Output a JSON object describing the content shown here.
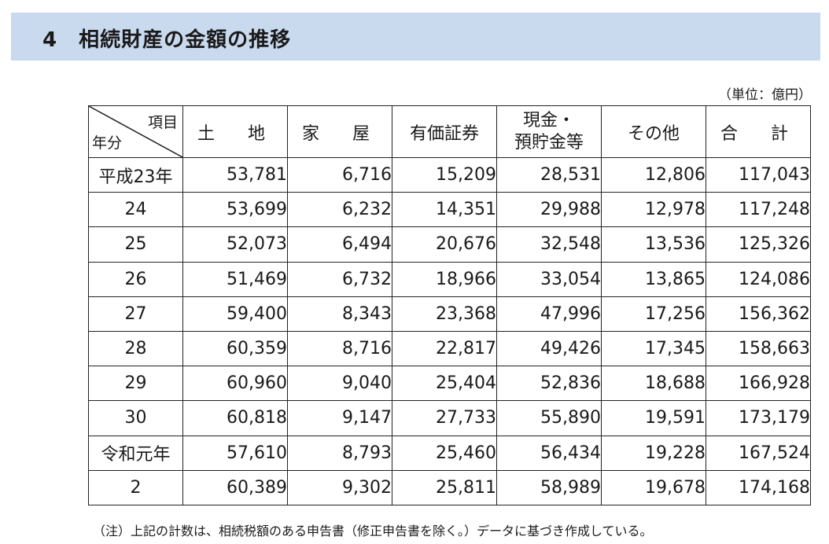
{
  "title": "4　相続財産の金額の推移",
  "unit": "（単位：億円）",
  "table": {
    "corner_top": "項目",
    "corner_bottom": "年分",
    "headers": [
      "土　地",
      "家　屋",
      "有価証券",
      "現金・",
      "その他",
      "合　計"
    ],
    "header_cash_line2": "預貯金等",
    "rows": [
      {
        "year": "平成23年",
        "values": [
          "53,781",
          "6,716",
          "15,209",
          "28,531",
          "12,806",
          "117,043"
        ]
      },
      {
        "year": "24",
        "values": [
          "53,699",
          "6,232",
          "14,351",
          "29,988",
          "12,978",
          "117,248"
        ]
      },
      {
        "year": "25",
        "values": [
          "52,073",
          "6,494",
          "20,676",
          "32,548",
          "13,536",
          "125,326"
        ]
      },
      {
        "year": "26",
        "values": [
          "51,469",
          "6,732",
          "18,966",
          "33,054",
          "13,865",
          "124,086"
        ]
      },
      {
        "year": "27",
        "values": [
          "59,400",
          "8,343",
          "23,368",
          "47,996",
          "17,256",
          "156,362"
        ]
      },
      {
        "year": "28",
        "values": [
          "60,359",
          "8,716",
          "22,817",
          "49,426",
          "17,345",
          "158,663"
        ]
      },
      {
        "year": "29",
        "values": [
          "60,960",
          "9,040",
          "25,404",
          "52,836",
          "18,688",
          "166,928"
        ]
      },
      {
        "year": "30",
        "values": [
          "60,818",
          "9,147",
          "27,733",
          "55,890",
          "19,591",
          "173,179"
        ]
      },
      {
        "year": "令和元年",
        "values": [
          "57,610",
          "8,793",
          "25,460",
          "56,434",
          "19,228",
          "167,524"
        ]
      },
      {
        "year": "2",
        "values": [
          "60,389",
          "9,302",
          "25,811",
          "58,989",
          "19,678",
          "174,168"
        ]
      }
    ]
  },
  "footnote": "（注）上記の計数は、相続税額のある申告書（修正申告書を除く。）データに基づき作成している。"
}
